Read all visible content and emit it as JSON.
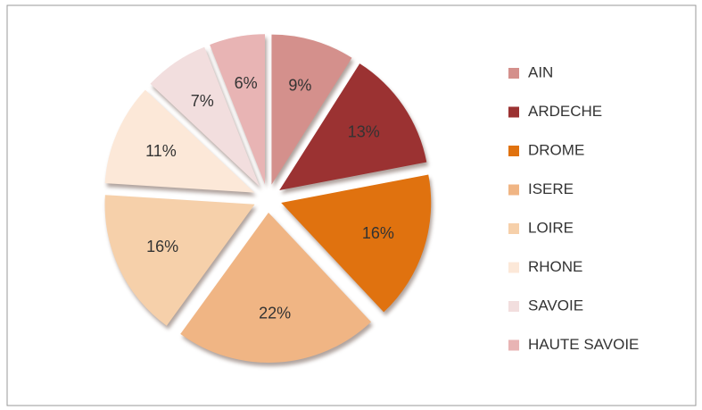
{
  "chart_data": {
    "type": "pie",
    "categories": [
      "AIN",
      "ARDECHE",
      "DROME",
      "ISERE",
      "LOIRE",
      "RHONE",
      "SAVOIE",
      "HAUTE SAVOIE"
    ],
    "values": [
      9,
      13,
      16,
      22,
      16,
      11,
      7,
      6
    ],
    "value_labels": [
      "9%",
      "13%",
      "16%",
      "22%",
      "16%",
      "11%",
      "7%",
      "6%"
    ],
    "colors": [
      "#d4908c",
      "#9b3232",
      "#e0720f",
      "#f0b584",
      "#f6d0aa",
      "#fce8d8",
      "#f2dede",
      "#e8b4b4"
    ],
    "legend": "right"
  }
}
